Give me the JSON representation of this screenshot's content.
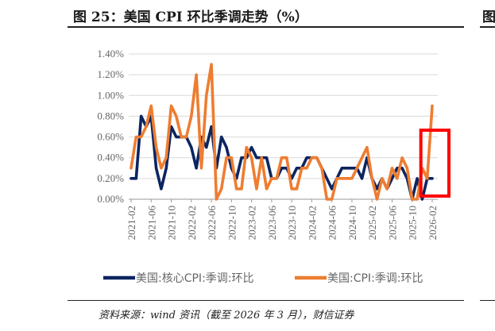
{
  "header": {
    "title": "图 25：美国 CPI 环比季调走势（%）",
    "right_edge_text": "图"
  },
  "footer": {
    "source": "资料来源：wind 资讯（截至 2026 年 3 月），财信证券"
  },
  "chart_data": {
    "type": "line",
    "title": "图 25：美国 CPI 环比季调走势（%）",
    "xlabel": "",
    "ylabel": "",
    "x": [
      "2021-02",
      "2021-03",
      "2021-04",
      "2021-05",
      "2021-06",
      "2021-07",
      "2021-08",
      "2021-09",
      "2021-10",
      "2021-11",
      "2021-12",
      "2022-01",
      "2022-02",
      "2022-03",
      "2022-04",
      "2022-05",
      "2022-06",
      "2022-07",
      "2022-08",
      "2022-09",
      "2022-10",
      "2022-11",
      "2022-12",
      "2023-01",
      "2023-02",
      "2023-03",
      "2023-04",
      "2023-05",
      "2023-06",
      "2023-07",
      "2023-08",
      "2023-09",
      "2023-10",
      "2023-11",
      "2023-12",
      "2024-01",
      "2024-02",
      "2024-03",
      "2024-04",
      "2024-05",
      "2024-06",
      "2024-07",
      "2024-08",
      "2024-09",
      "2024-10",
      "2024-11",
      "2024-12",
      "2025-01",
      "2025-02",
      "2025-03",
      "2025-04",
      "2025-05",
      "2025-06",
      "2025-07",
      "2025-08",
      "2025-09",
      "2025-10",
      "2025-11",
      "2025-12",
      "2026-01",
      "2026-02"
    ],
    "x_tick_labels": [
      "2021-02",
      "2021-06",
      "2021-10",
      "2022-02",
      "2022-06",
      "2022-10",
      "2023-02",
      "2023-06",
      "2023-10",
      "2024-02",
      "2024-06",
      "2024-10",
      "2025-02",
      "2025-06",
      "2025-10",
      "2026-02"
    ],
    "ylim": [
      0,
      1.4
    ],
    "y_tick_labels": [
      "0.00%",
      "0.20%",
      "0.40%",
      "0.60%",
      "0.80%",
      "1.00%",
      "1.20%",
      "1.40%"
    ],
    "grid": true,
    "legend_position": "bottom",
    "series": [
      {
        "name": "美国:核心CPI:季调:环比",
        "color": "#0b2560",
        "values": [
          0.2,
          0.2,
          0.8,
          0.7,
          0.8,
          0.3,
          0.1,
          0.3,
          0.7,
          0.6,
          0.6,
          0.6,
          0.5,
          0.3,
          0.6,
          0.5,
          0.7,
          0.3,
          0.6,
          0.5,
          0.3,
          0.2,
          0.4,
          0.4,
          0.5,
          0.4,
          0.4,
          0.4,
          0.2,
          0.2,
          0.3,
          0.3,
          0.2,
          0.3,
          0.3,
          0.4,
          0.4,
          0.4,
          0.3,
          0.2,
          0.1,
          0.2,
          0.3,
          0.3,
          0.3,
          0.3,
          0.2,
          0.4,
          0.2,
          0.1,
          0.2,
          0.1,
          0.2,
          0.3,
          0.3,
          0.2,
          0.0,
          0.2,
          0.0,
          0.2,
          0.2
        ]
      },
      {
        "name": "美国:CPI:季调:环比",
        "color": "#ee7d31",
        "values": [
          0.3,
          0.6,
          0.6,
          0.7,
          0.9,
          0.5,
          0.3,
          0.4,
          0.9,
          0.8,
          0.6,
          0.6,
          0.8,
          1.2,
          0.3,
          1.0,
          1.3,
          0.0,
          0.1,
          0.4,
          0.4,
          0.1,
          0.1,
          0.5,
          0.4,
          0.1,
          0.4,
          0.1,
          0.2,
          0.2,
          0.4,
          0.4,
          0.1,
          0.1,
          0.3,
          0.3,
          0.4,
          0.4,
          0.3,
          0.0,
          0.0,
          0.2,
          0.2,
          0.2,
          0.2,
          0.3,
          0.4,
          0.5,
          0.2,
          0.0,
          0.2,
          0.1,
          0.3,
          0.2,
          0.4,
          0.3,
          0.0,
          0.0,
          0.3,
          0.2,
          0.9
        ]
      }
    ],
    "annotations": [
      {
        "type": "highlight-box",
        "color": "#ff0000",
        "x_range": [
          "2026-01",
          "2026-02"
        ]
      }
    ]
  }
}
